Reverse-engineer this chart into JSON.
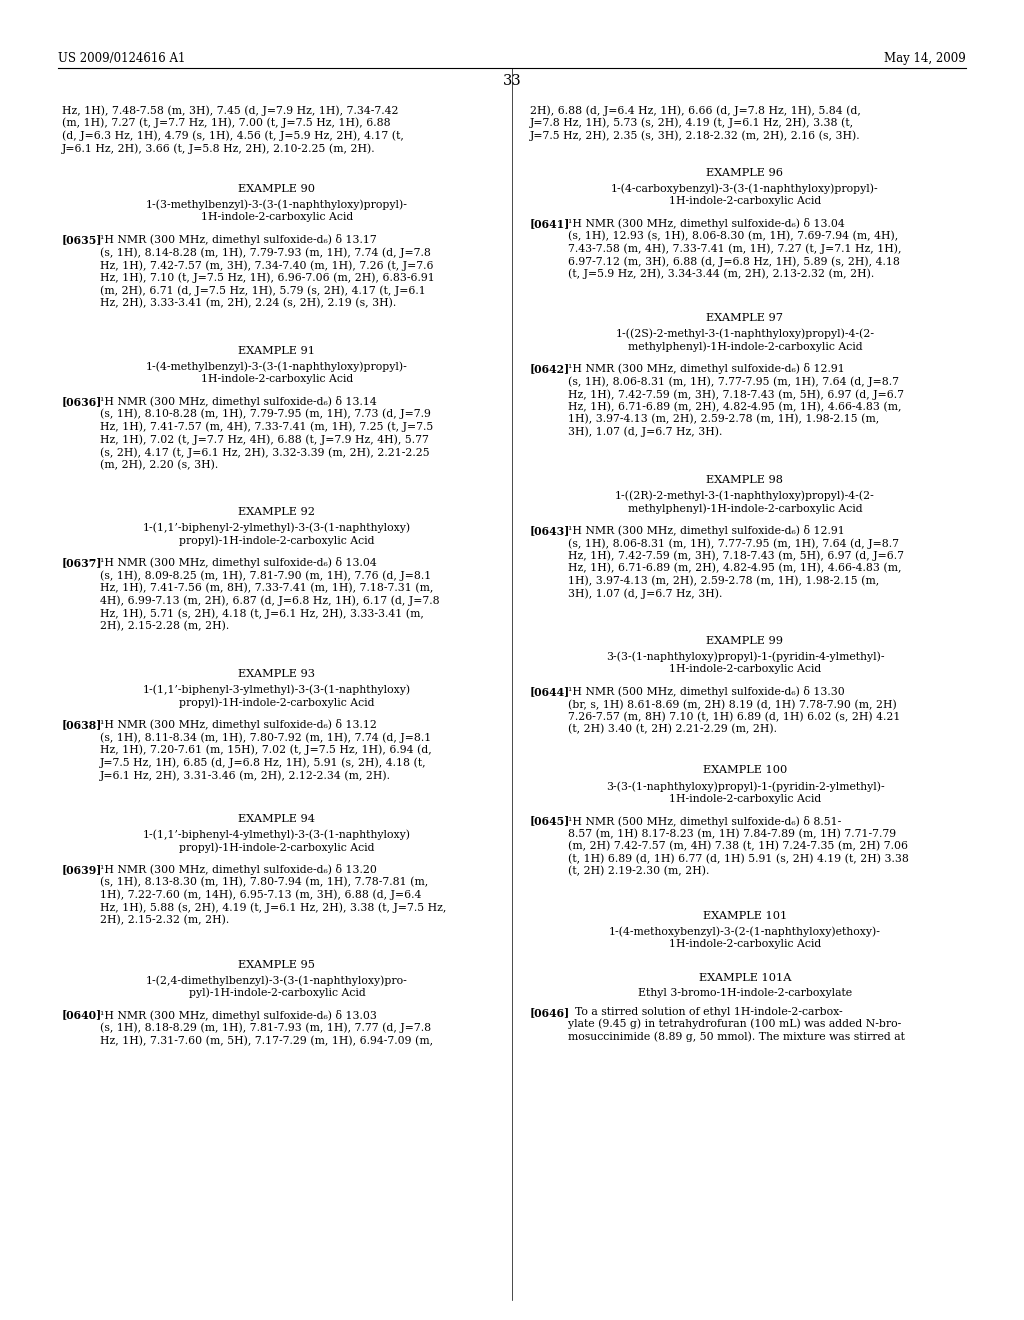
{
  "background_color": "#ffffff",
  "header_left": "US 2009/0124616 A1",
  "header_right": "May 14, 2009",
  "page_number": "33"
}
